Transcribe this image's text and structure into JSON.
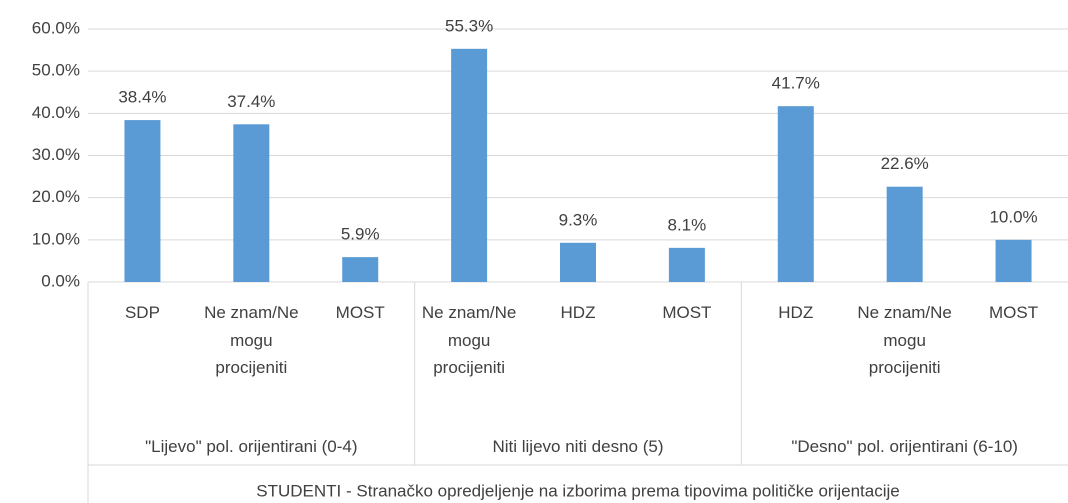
{
  "chart_data": {
    "type": "bar",
    "color": "#5b9bd5",
    "grid": true,
    "ylim": [
      0,
      60
    ],
    "yticks": [
      {
        "value": 0,
        "label": "0.0%"
      },
      {
        "value": 10,
        "label": "10.0%"
      },
      {
        "value": 20,
        "label": "20.0%"
      },
      {
        "value": 30,
        "label": "30.0%"
      },
      {
        "value": 40,
        "label": "40.0%"
      },
      {
        "value": 50,
        "label": "50.0%"
      },
      {
        "value": 60,
        "label": "60.0%"
      }
    ],
    "groups": [
      {
        "name": "\"Lijevo\" pol. orijentirani (0-4)",
        "categories": [
          "SDP",
          "Ne znam/Ne mogu procijeniti",
          "MOST"
        ],
        "values": [
          38.4,
          37.4,
          5.9
        ],
        "value_labels": [
          "38.4%",
          "37.4%",
          "5.9%"
        ]
      },
      {
        "name": "Niti lijevo niti desno (5)",
        "categories": [
          "Ne znam/Ne mogu procijeniti",
          "HDZ",
          "MOST"
        ],
        "values": [
          55.3,
          9.3,
          8.1
        ],
        "value_labels": [
          "55.3%",
          "9.3%",
          "8.1%"
        ]
      },
      {
        "name": "\"Desno\" pol. orijentirani (6-10)",
        "categories": [
          "HDZ",
          "Ne znam/Ne mogu procijeniti",
          "MOST"
        ],
        "values": [
          41.7,
          22.6,
          10.0
        ],
        "value_labels": [
          "41.7%",
          "22.6%",
          "10.0%"
        ]
      }
    ],
    "x_label": "STUDENTI - Stranačko opredjeljenje na izborima prema tipovima političke orijentacije"
  }
}
